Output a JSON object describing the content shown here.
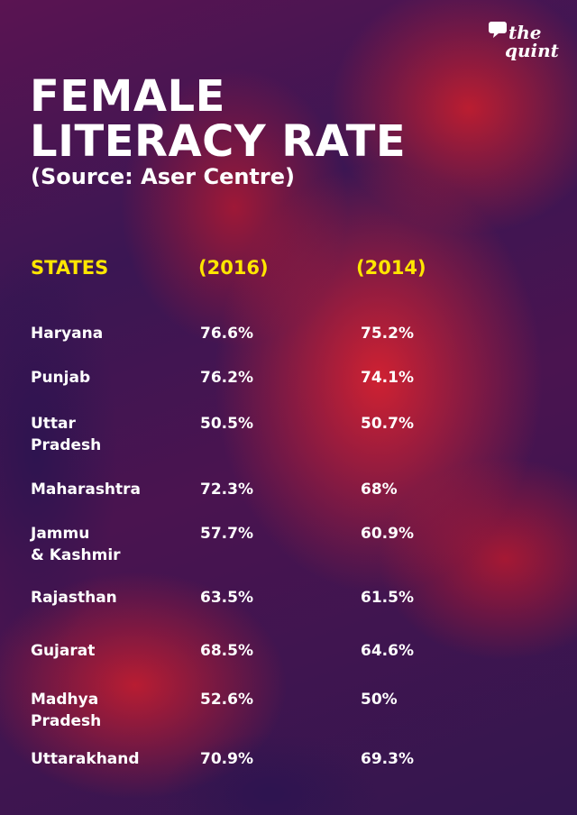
{
  "brand": {
    "line1": "the",
    "line2": "quint"
  },
  "title_lines": [
    "FEMALE",
    "LITERACY RATE"
  ],
  "subtitle": "(Source: Aser Centre)",
  "colors": {
    "header_text": "#ffe600",
    "body_text": "#ffffff",
    "accent_red": "#d62230",
    "background": "#3b1653"
  },
  "chart_data": {
    "type": "table",
    "columns": [
      "STATES",
      "(2016)",
      "(2014)"
    ],
    "rows": [
      {
        "state": "Haryana",
        "state_lines": [
          "Haryana"
        ],
        "y2016": "76.6%",
        "y2014": "75.2%"
      },
      {
        "state": "Punjab",
        "state_lines": [
          "Punjab"
        ],
        "y2016": "76.2%",
        "y2014": "74.1%"
      },
      {
        "state": "Uttar Pradesh",
        "state_lines": [
          "Uttar",
          "Pradesh"
        ],
        "y2016": "50.5%",
        "y2014": "50.7%"
      },
      {
        "state": "Maharashtra",
        "state_lines": [
          "Maharashtra"
        ],
        "y2016": "72.3%",
        "y2014": "68%"
      },
      {
        "state": "Jammu & Kashmir",
        "state_lines": [
          "Jammu",
          "& Kashmir"
        ],
        "y2016": "57.7%",
        "y2014": "60.9%"
      },
      {
        "state": "Rajasthan",
        "state_lines": [
          "Rajasthan"
        ],
        "y2016": "63.5%",
        "y2014": "61.5%"
      },
      {
        "state": "Gujarat",
        "state_lines": [
          "Gujarat"
        ],
        "y2016": "68.5%",
        "y2014": "64.6%"
      },
      {
        "state": "Madhya Pradesh",
        "state_lines": [
          "Madhya",
          "Pradesh"
        ],
        "y2016": "52.6%",
        "y2014": "50%"
      },
      {
        "state": "Uttarakhand",
        "state_lines": [
          "Uttarakhand"
        ],
        "y2016": "70.9%",
        "y2014": "69.3%"
      }
    ]
  }
}
